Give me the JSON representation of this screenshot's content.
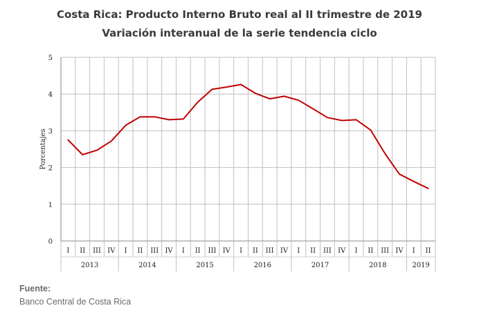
{
  "chart_data": {
    "type": "line",
    "title": "Costa Rica: Producto Interno Bruto real al II trimestre de 2019",
    "subtitle": "Variación interanual de la serie tendencia ciclo",
    "ylabel": "Porcentajes",
    "xlabel": "",
    "ylim": [
      0,
      5
    ],
    "yticks": [
      "0",
      "1",
      "2",
      "3",
      "4",
      "5"
    ],
    "grid": true,
    "legend": "none",
    "line_color": "#c00000",
    "quarters": [
      "I",
      "II",
      "III",
      "IV",
      "I",
      "II",
      "III",
      "IV",
      "I",
      "II",
      "III",
      "IV",
      "I",
      "II",
      "III",
      "IV",
      "I",
      "II",
      "III",
      "IV",
      "I",
      "II",
      "III",
      "IV",
      "I",
      "II"
    ],
    "years": [
      {
        "label": "2013",
        "count": 4
      },
      {
        "label": "2014",
        "count": 4
      },
      {
        "label": "2015",
        "count": 4
      },
      {
        "label": "2016",
        "count": 4
      },
      {
        "label": "2017",
        "count": 4
      },
      {
        "label": "2018",
        "count": 4
      },
      {
        "label": "2019",
        "count": 2
      }
    ],
    "values": [
      2.75,
      2.35,
      2.47,
      2.72,
      3.15,
      3.38,
      3.38,
      3.3,
      3.32,
      3.78,
      4.13,
      4.19,
      4.26,
      4.02,
      3.87,
      3.94,
      3.83,
      3.6,
      3.36,
      3.28,
      3.3,
      3.02,
      2.38,
      1.82,
      1.62,
      1.43
    ]
  },
  "source": {
    "label": "Fuente:",
    "text": "Banco Central de Costa Rica"
  }
}
